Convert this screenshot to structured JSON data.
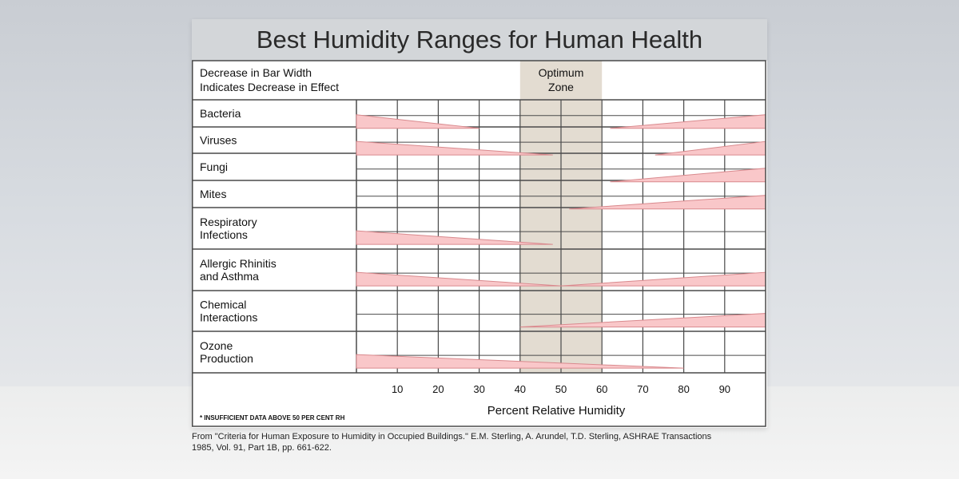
{
  "chart_data": {
    "type": "bar",
    "title": "Best Humidity Ranges for Human Health",
    "legend_note": [
      "Decrease in Bar Width",
      "Indicates Decrease in Effect"
    ],
    "optimum_zone": {
      "label": [
        "Optimum",
        "Zone"
      ],
      "range": [
        40,
        60
      ]
    },
    "x_ticks": [
      10,
      20,
      30,
      40,
      50,
      60,
      70,
      80,
      90
    ],
    "xlabel": "Percent Relative Humidity",
    "xlim": [
      0,
      100
    ],
    "footnote": "* INSUFFICIENT DATA ABOVE 50 PER CENT RH",
    "categories": [
      {
        "label": [
          "Bacteria"
        ],
        "low": [
          0,
          30
        ],
        "high": [
          62,
          100
        ]
      },
      {
        "label": [
          "Viruses"
        ],
        "low": [
          0,
          48
        ],
        "high": [
          73,
          100
        ]
      },
      {
        "label": [
          "Fungi"
        ],
        "low": null,
        "high": [
          62,
          100
        ]
      },
      {
        "label": [
          "Mites"
        ],
        "low": null,
        "high": [
          52,
          100
        ]
      },
      {
        "label": [
          "Respiratory",
          "Infections"
        ],
        "low": [
          0,
          48
        ],
        "high": null
      },
      {
        "label": [
          "Allergic Rhinitis",
          "and Asthma"
        ],
        "low": [
          0,
          50
        ],
        "high": [
          50,
          100
        ]
      },
      {
        "label": [
          "Chemical",
          "Interactions"
        ],
        "low": null,
        "high": [
          40,
          100
        ]
      },
      {
        "label": [
          "Ozone",
          "Production"
        ],
        "low": [
          0,
          80
        ],
        "high": null
      }
    ]
  },
  "source_text": [
    "From \"Criteria for Human Exposure to Humidity in Occupied Buildings.\" E.M. Sterling, A. Arundel, T.D. Sterling, ASHRAE Transactions",
    "1985, Vol. 91, Part 1B, pp. 661-622."
  ],
  "colors": {
    "bar_fill": "#f9c7c9",
    "bar_stroke": "#d98a8e",
    "zone_fill": "#e3dcd1",
    "grid": "#4a4a4a"
  }
}
